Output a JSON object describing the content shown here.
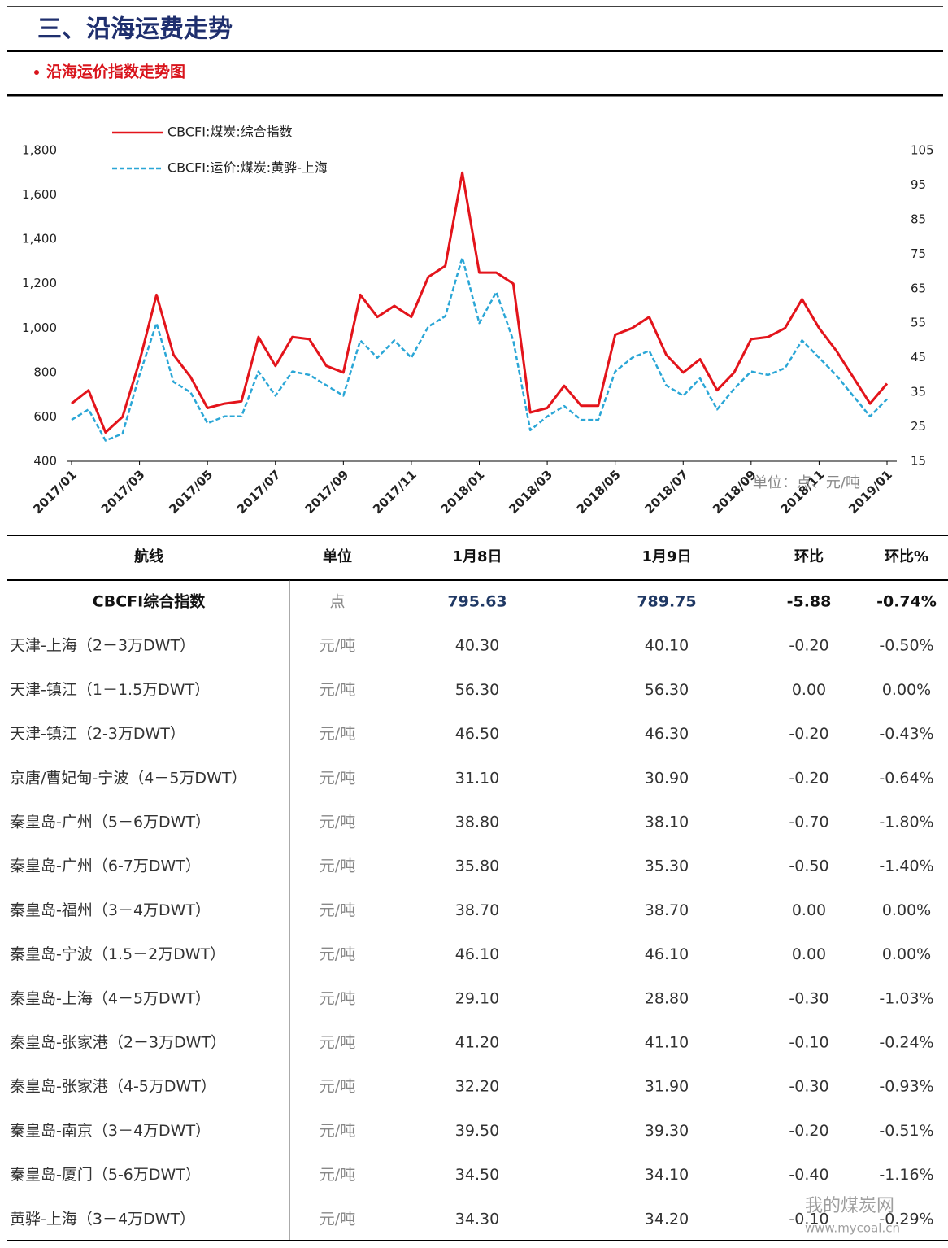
{
  "header": {
    "title": "三、沿海运费走势",
    "subtitle": "沿海运价指数走势图"
  },
  "chart_data": {
    "type": "line",
    "categories": [
      "2017/01",
      null,
      null,
      null,
      "2017/03",
      null,
      null,
      null,
      "2017/05",
      null,
      null,
      null,
      "2017/07",
      null,
      null,
      null,
      "2017/09",
      null,
      null,
      null,
      "2017/11",
      null,
      null,
      null,
      "2018/01",
      null,
      null,
      null,
      "2018/03",
      null,
      null,
      null,
      "2018/05",
      null,
      null,
      null,
      "2018/07",
      null,
      null,
      null,
      "2018/09",
      null,
      null,
      null,
      "2018/11",
      null,
      null,
      null,
      "2019/01"
    ],
    "series": [
      {
        "name": "CBCFI:煤炭:综合指数",
        "color": "#e3141b",
        "line_style": "solid",
        "values": [
          660,
          720,
          530,
          600,
          850,
          1150,
          880,
          780,
          640,
          660,
          670,
          960,
          830,
          960,
          950,
          830,
          800,
          1150,
          1050,
          1100,
          1050,
          1230,
          1280,
          1700,
          1250,
          1250,
          1200,
          620,
          640,
          740,
          650,
          650,
          970,
          1000,
          1050,
          880,
          800,
          860,
          720,
          800,
          950,
          960,
          1000,
          1130,
          1000,
          900,
          780,
          660,
          750
        ]
      },
      {
        "name": "CBCFI:运价:煤炭:黄骅-上海",
        "color": "#2aa6d6",
        "line_style": "dashed",
        "axis": "y2",
        "values": [
          27,
          30,
          21,
          23,
          40,
          55,
          38,
          35,
          26,
          28,
          28,
          41,
          34,
          41,
          40,
          37,
          34,
          50,
          45,
          50,
          45,
          54,
          57,
          74,
          55,
          64,
          50,
          24,
          28,
          31,
          27,
          27,
          41,
          45,
          47,
          37,
          34,
          39,
          30,
          36,
          41,
          40,
          42,
          50,
          45,
          40,
          34,
          28,
          33
        ]
      }
    ],
    "ylim": [
      400,
      1800
    ],
    "yticks": [
      400,
      600,
      800,
      {
        "value": 1000,
        "label": "1,000"
      },
      {
        "value": 1200,
        "label": "1,200"
      },
      {
        "value": 1400,
        "label": "1,400"
      },
      {
        "value": 1600,
        "label": "1,600"
      },
      {
        "value": 1800,
        "label": "1,800"
      }
    ],
    "y2lim": [
      15,
      105
    ],
    "y2ticks": [
      15,
      25,
      35,
      45,
      55,
      65,
      75,
      85,
      95,
      105
    ],
    "annotation": "单位：点、元/吨"
  },
  "table": {
    "header": [
      "航线",
      "单位",
      "1月8日",
      "1月9日",
      "环比",
      "环比%"
    ],
    "rows": [
      [
        "CBCFI综合指数",
        "点",
        "795.63",
        "789.75",
        "-5.88",
        "-0.74%"
      ],
      [
        "天津-上海（2－3万DWT）",
        "元/吨",
        "40.30",
        "40.10",
        "-0.20",
        "-0.50%"
      ],
      [
        "天津-镇江（1－1.5万DWT）",
        "元/吨",
        "56.30",
        "56.30",
        "0.00",
        "0.00%"
      ],
      [
        "天津-镇江（2-3万DWT）",
        "元/吨",
        "46.50",
        "46.30",
        "-0.20",
        "-0.43%"
      ],
      [
        "京唐/曹妃甸-宁波（4－5万DWT）",
        "元/吨",
        "31.10",
        "30.90",
        "-0.20",
        "-0.64%"
      ],
      [
        "秦皇岛-广州（5－6万DWT）",
        "元/吨",
        "38.80",
        "38.10",
        "-0.70",
        "-1.80%"
      ],
      [
        "秦皇岛-广州（6-7万DWT）",
        "元/吨",
        "35.80",
        "35.30",
        "-0.50",
        "-1.40%"
      ],
      [
        "秦皇岛-福州（3－4万DWT）",
        "元/吨",
        "38.70",
        "38.70",
        "0.00",
        "0.00%"
      ],
      [
        "秦皇岛-宁波（1.5－2万DWT）",
        "元/吨",
        "46.10",
        "46.10",
        "0.00",
        "0.00%"
      ],
      [
        "秦皇岛-上海（4－5万DWT）",
        "元/吨",
        "29.10",
        "28.80",
        "-0.30",
        "-1.03%"
      ],
      [
        "秦皇岛-张家港（2－3万DWT）",
        "元/吨",
        "41.20",
        "41.10",
        "-0.10",
        "-0.24%"
      ],
      [
        "秦皇岛-张家港（4-5万DWT）",
        "元/吨",
        "32.20",
        "31.90",
        "-0.30",
        "-0.93%"
      ],
      [
        "秦皇岛-南京（3－4万DWT）",
        "元/吨",
        "39.50",
        "39.30",
        "-0.20",
        "-0.51%"
      ],
      [
        "秦皇岛-厦门（5-6万DWT）",
        "元/吨",
        "34.50",
        "34.10",
        "-0.40",
        "-1.16%"
      ],
      [
        "黄骅-上海（3－4万DWT）",
        "元/吨",
        "34.30",
        "34.20",
        "-0.10",
        "-0.29%"
      ]
    ]
  },
  "watermark": {
    "name": "我的煤炭网",
    "url": "www.mycoal.cn"
  }
}
